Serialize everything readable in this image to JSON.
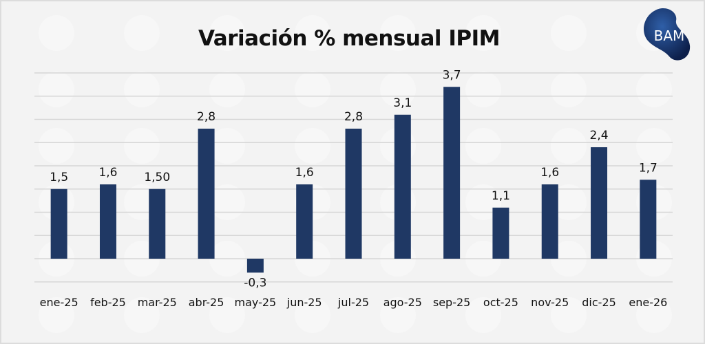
{
  "logo": {
    "text": "BAM",
    "watermark": "BAM"
  },
  "chart_data": {
    "type": "bar",
    "title": "Variación % mensual IPIM",
    "xlabel": "",
    "ylabel": "",
    "categories": [
      "ene-25",
      "feb-25",
      "mar-25",
      "abr-25",
      "may-25",
      "jun-25",
      "jul-25",
      "ago-25",
      "sep-25",
      "oct-25",
      "nov-25",
      "dic-25",
      "ene-26"
    ],
    "values": [
      1.5,
      1.6,
      1.5,
      2.8,
      -0.3,
      1.6,
      2.8,
      3.1,
      3.7,
      1.1,
      1.6,
      2.4,
      1.7
    ],
    "data_labels": [
      "1,5",
      "1,6",
      "1,50",
      "2,8",
      "-0,3",
      "1,6",
      "2,8",
      "3,1",
      "3,7",
      "1,1",
      "1,6",
      "2,4",
      "1,7"
    ],
    "ylim": [
      -0.5,
      4.2
    ],
    "grid": true,
    "bar_color": "#1f3864",
    "legend": "none"
  }
}
